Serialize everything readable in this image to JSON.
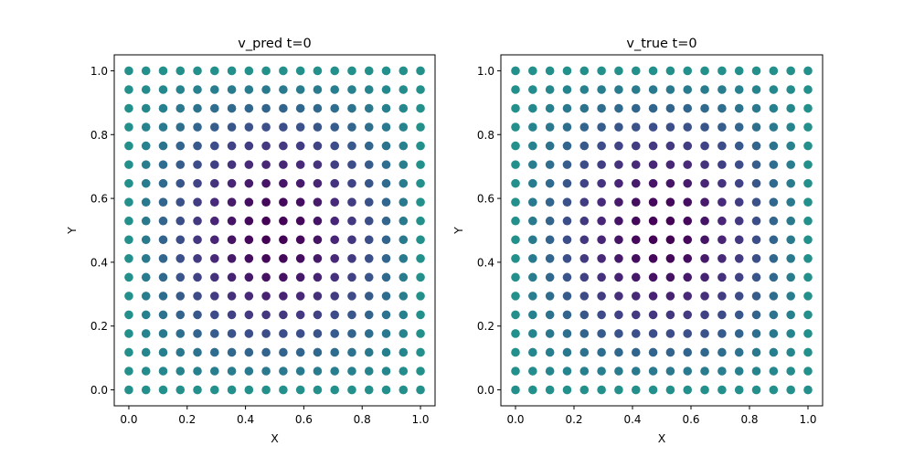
{
  "chart_data": [
    {
      "type": "scatter",
      "title": "v_pred t=0",
      "xlabel": "X",
      "ylabel": "Y",
      "xlim": [
        -0.05,
        1.05
      ],
      "ylim": [
        -0.05,
        1.05
      ],
      "xticks": [
        "0.0",
        "0.2",
        "0.4",
        "0.6",
        "0.8",
        "1.0"
      ],
      "yticks": [
        "0.0",
        "0.2",
        "0.4",
        "0.6",
        "0.8",
        "1.0"
      ],
      "grid_points": 18,
      "x_range": [
        0,
        1
      ],
      "y_range": [
        0,
        1
      ],
      "colormap": "viridis",
      "color_field": "approximately 0.5 - 0.5*sin(pi*x)*sin(pi*y); bright yellow near x≈0.1, y≈0.5 and dark purple near x≈0.9, y≈0.5",
      "grid": false
    },
    {
      "type": "scatter",
      "title": "v_true t=0",
      "xlabel": "X",
      "ylabel": "Y",
      "xlim": [
        -0.05,
        1.05
      ],
      "ylim": [
        -0.05,
        1.05
      ],
      "xticks": [
        "0.0",
        "0.2",
        "0.4",
        "0.6",
        "0.8",
        "1.0"
      ],
      "yticks": [
        "0.0",
        "0.2",
        "0.4",
        "0.6",
        "0.8",
        "1.0"
      ],
      "grid_points": 18,
      "x_range": [
        0,
        1
      ],
      "y_range": [
        0,
        1
      ],
      "colormap": "viridis",
      "color_field": "approximately 0.5 - 0.5*sin(pi*x)*sin(pi*y); bright yellow near x≈0.1, y≈0.5 and dark purple near x≈0.9, y≈0.5",
      "grid": false
    }
  ]
}
